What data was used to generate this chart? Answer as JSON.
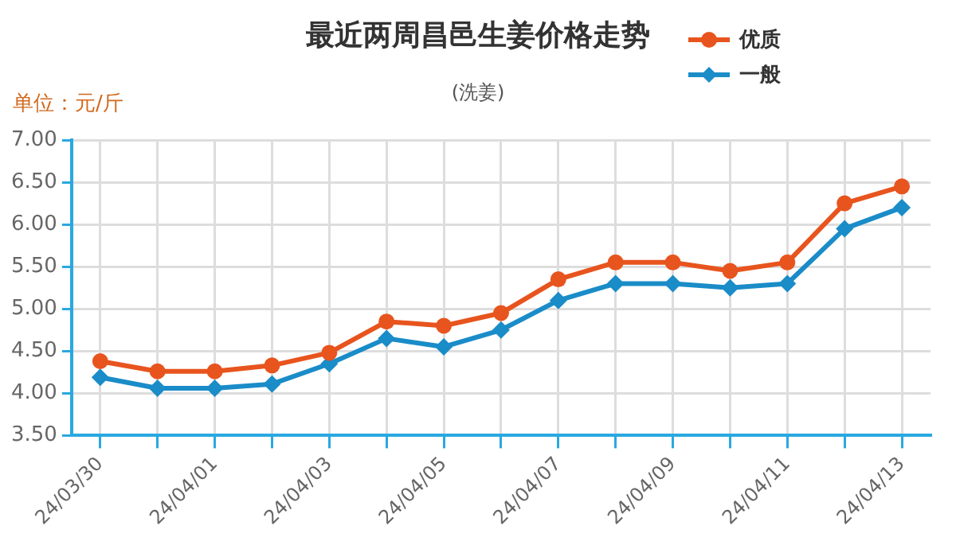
{
  "chart_data": {
    "type": "line",
    "title": "最近两周昌邑生姜价格走势",
    "subtitle": "(洗姜)",
    "ylabel": "单位：元/斤",
    "categories": [
      "24/03/30",
      null,
      "24/04/01",
      null,
      "24/04/03",
      null,
      "24/04/05",
      null,
      "24/04/07",
      null,
      "24/04/09",
      null,
      "24/04/11",
      null,
      "24/04/13"
    ],
    "series": [
      {
        "name": "优质",
        "color": "#e8541e",
        "marker": "circle",
        "values": [
          4.38,
          4.26,
          4.26,
          4.33,
          4.48,
          4.85,
          4.8,
          4.95,
          5.35,
          5.55,
          5.55,
          5.45,
          5.55,
          6.25,
          6.45
        ]
      },
      {
        "name": "一般",
        "color": "#1a8cc8",
        "marker": "diamond",
        "values": [
          4.19,
          4.06,
          4.06,
          4.11,
          4.35,
          4.65,
          4.55,
          4.75,
          5.1,
          5.3,
          5.3,
          5.25,
          5.3,
          5.95,
          6.2
        ]
      }
    ],
    "ylim": [
      3.5,
      7
    ],
    "yticks": [
      {
        "value": 3.5,
        "label": "3.50"
      },
      {
        "value": 4,
        "label": "4.00"
      },
      {
        "value": 4.5,
        "label": "4.50"
      },
      {
        "value": 5,
        "label": "5.00"
      },
      {
        "value": 5.5,
        "label": "5.50"
      },
      {
        "value": 6,
        "label": "6.00"
      },
      {
        "value": 6.5,
        "label": "6.50"
      },
      {
        "value": 7,
        "label": "7.00"
      }
    ],
    "grid": true,
    "legend": "top right",
    "line_style": "solid"
  }
}
